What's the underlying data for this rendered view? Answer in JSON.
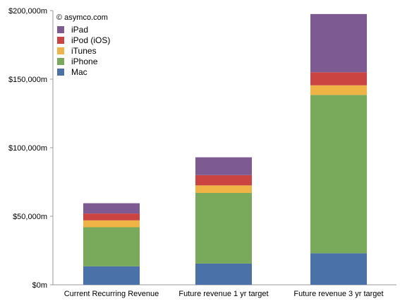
{
  "chart_data": {
    "type": "bar",
    "stacked": true,
    "watermark": "© asymco.com",
    "categories": [
      "Current Recurring Revenue",
      "Future revenue 1 yr target",
      "Future revenue 3 yr target"
    ],
    "series": [
      {
        "name": "Mac",
        "color": "#4a72a8",
        "values": [
          13500,
          15500,
          23000
        ]
      },
      {
        "name": "iPhone",
        "color": "#79a95a",
        "values": [
          28500,
          51500,
          115500
        ]
      },
      {
        "name": "iTunes",
        "color": "#f0b346",
        "values": [
          5000,
          5500,
          7000
        ]
      },
      {
        "name": "iPod (iOS)",
        "color": "#cc4441",
        "values": [
          5000,
          7500,
          9500
        ]
      },
      {
        "name": "iPad",
        "color": "#7e5a93",
        "values": [
          7500,
          13000,
          42500
        ]
      }
    ],
    "legend_order": [
      "iPad",
      "iPod (iOS)",
      "iTunes",
      "iPhone",
      "Mac"
    ],
    "legend_placement": "top-left",
    "yticks": [
      {
        "value": 0,
        "label": "$0m"
      },
      {
        "value": 50000,
        "label": "$50,000m"
      },
      {
        "value": 100000,
        "label": "$100,000m"
      },
      {
        "value": 150000,
        "label": "$150,000m"
      },
      {
        "value": 200000,
        "label": "$200,000m"
      }
    ],
    "ylim": [
      0,
      200000
    ],
    "grid": false,
    "title": "",
    "xlabel": "",
    "ylabel": ""
  }
}
